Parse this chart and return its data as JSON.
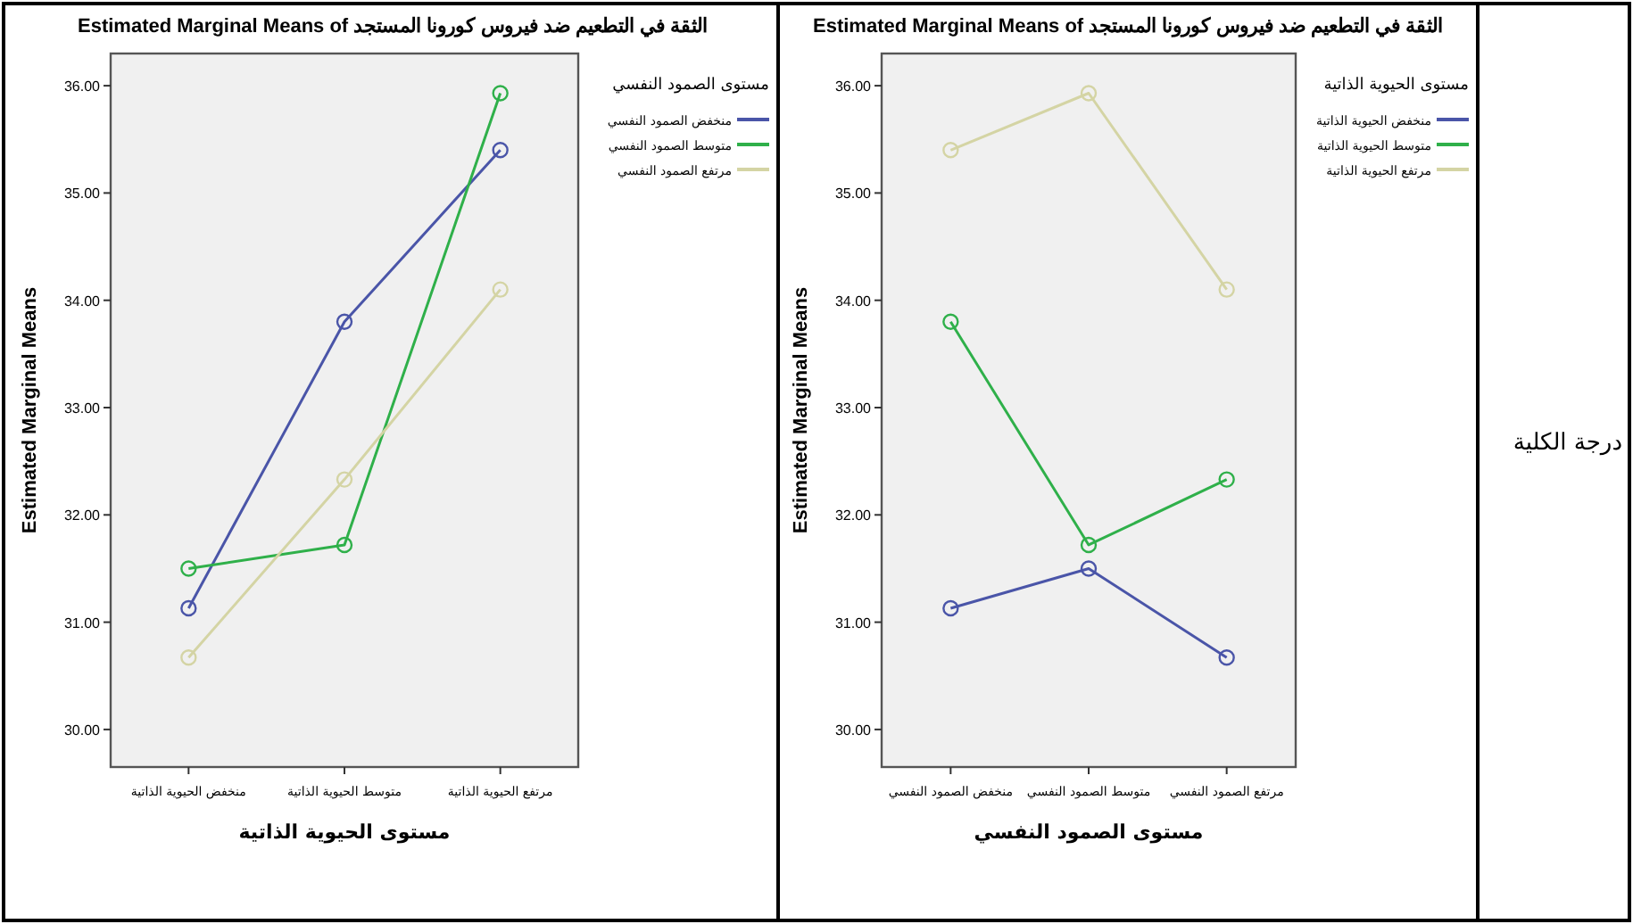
{
  "chart_data": [
    {
      "type": "line",
      "title": "Estimated Marginal Means of الثقة في التطعيم ضد فيروس كورونا المستجد",
      "xlabel": "مستوى الحيوية الذاتية",
      "ylabel": "Estimated Marginal Means",
      "legend_title": "مستوى الصمود النفسي",
      "legend": "right",
      "marker": "circle",
      "categories": [
        "منخفض الحيوية الذاتية",
        "متوسط الحيوية الذاتية",
        "مرتفع الحيوية الذاتية"
      ],
      "ylim": [
        29.65,
        36.3
      ],
      "yticks": [
        {
          "value": 30,
          "label": "30.00"
        },
        {
          "value": 31,
          "label": "31.00"
        },
        {
          "value": 32,
          "label": "32.00"
        },
        {
          "value": 33,
          "label": "33.00"
        },
        {
          "value": 34,
          "label": "34.00"
        },
        {
          "value": 35,
          "label": "35.00"
        },
        {
          "value": 36,
          "label": "36.00"
        }
      ],
      "series": [
        {
          "name": "منخفض الصمود النفسي",
          "color": "#4a55a8",
          "values": [
            31.13,
            33.8,
            35.4
          ]
        },
        {
          "name": "متوسط الصمود النفسي",
          "color": "#2fb04a",
          "values": [
            31.5,
            31.72,
            35.93
          ]
        },
        {
          "name": "مرتفع الصمود النفسي",
          "color": "#d4d4a4",
          "values": [
            30.67,
            32.33,
            34.1
          ]
        }
      ]
    },
    {
      "type": "line",
      "title": "Estimated Marginal Means of الثقة في التطعيم ضد فيروس كورونا المستجد",
      "xlabel": "مستوى الصمود النفسي",
      "ylabel": "Estimated Marginal Means",
      "legend_title": "مستوى الحيوية الذاتية",
      "legend": "right",
      "marker": "circle",
      "categories": [
        "منخفض الصمود النفسي",
        "متوسط الصمود النفسي",
        "مرتفع الصمود النفسي"
      ],
      "ylim": [
        29.65,
        36.3
      ],
      "yticks": [
        {
          "value": 30,
          "label": "30.00"
        },
        {
          "value": 31,
          "label": "31.00"
        },
        {
          "value": 32,
          "label": "32.00"
        },
        {
          "value": 33,
          "label": "33.00"
        },
        {
          "value": 34,
          "label": "34.00"
        },
        {
          "value": 35,
          "label": "35.00"
        },
        {
          "value": 36,
          "label": "36.00"
        }
      ],
      "series": [
        {
          "name": "منخفض الحيوية الذاتية",
          "color": "#4a55a8",
          "values": [
            31.13,
            31.5,
            30.67
          ]
        },
        {
          "name": "متوسط الحيوية الذاتية",
          "color": "#2fb04a",
          "values": [
            33.8,
            31.72,
            32.33
          ]
        },
        {
          "name": "مرتفع الحيوية الذاتية",
          "color": "#d4d4a4",
          "values": [
            35.4,
            35.93,
            34.1
          ]
        }
      ]
    },
    {
      "type": "other",
      "title": "درجة الكلية"
    }
  ]
}
